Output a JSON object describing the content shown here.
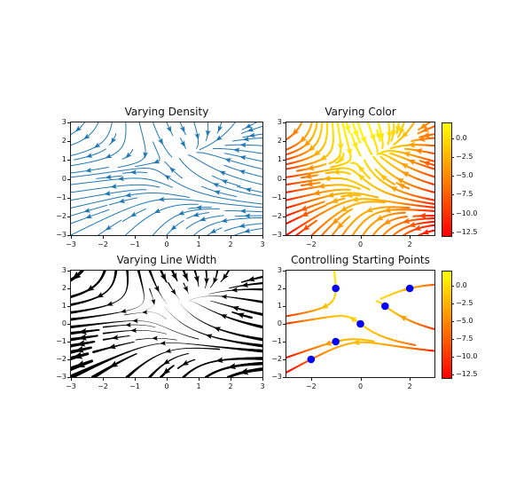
{
  "figure": {
    "background_color": "#ffffff"
  },
  "chart_data": {
    "type": "streamplot",
    "field": {
      "u_formula": "U = -1 - x^2 + y",
      "v_formula": "V = 1 + x - y^2",
      "x_range": [
        -3,
        3
      ],
      "y_range": [
        -3,
        3
      ]
    },
    "speed_max": 17.029386,
    "color_range": {
      "colormap": "autumn",
      "vmin": -13,
      "vmax": 2,
      "colormap_top": "#ffff00",
      "colormap_bottom": "#ff0000"
    },
    "colorbar": {
      "tick_values": [
        0,
        -2.5,
        -5,
        -7.5,
        -10,
        -12.5
      ],
      "tick_labels": [
        "0.0",
        "−2.5",
        "−5.0",
        "−7.5",
        "−10.0",
        "−12.5"
      ]
    },
    "panels": [
      {
        "title": "Varying Density",
        "density": [
          0.5,
          1
        ],
        "line_color": "#1f77b4",
        "linewidth": 1,
        "xtick_values": [
          -3,
          -2,
          -1,
          0,
          1,
          2,
          3
        ],
        "xtick_labels": [
          "−3",
          "−2",
          "−1",
          "0",
          "1",
          "2",
          "3"
        ],
        "ytick_values": [
          3,
          2,
          1,
          0,
          -1,
          -2,
          -3
        ],
        "ytick_labels": [
          "3",
          "2",
          "1",
          "0",
          "−1",
          "−2",
          "−3"
        ],
        "colorbar": false
      },
      {
        "title": "Varying Color",
        "density": [
          1,
          1
        ],
        "color_by": "u",
        "colormap": "autumn",
        "linewidth": 2,
        "xtick_values": [
          -2,
          0,
          2
        ],
        "xtick_labels": [
          "−2",
          "0",
          "2"
        ],
        "ytick_values": [
          3,
          2,
          1,
          0,
          -1,
          -2,
          -3
        ],
        "ytick_labels": [
          "3",
          "2",
          "1",
          "0",
          "−1",
          "−2",
          "−3"
        ],
        "colorbar": true
      },
      {
        "title": "Varying Line Width",
        "density": [
          0.6,
          0.6
        ],
        "line_color": "#000000",
        "linewidth_by": "speed",
        "max_linewidth": 5,
        "xtick_values": [
          -3,
          -2,
          -1,
          0,
          1,
          2,
          3
        ],
        "xtick_labels": [
          "−3",
          "−2",
          "−1",
          "0",
          "1",
          "2",
          "3"
        ],
        "ytick_values": [
          3,
          2,
          1,
          0,
          -1,
          -2,
          -3
        ],
        "ytick_labels": [
          "3",
          "2",
          "1",
          "0",
          "−1",
          "−2",
          "−3"
        ],
        "colorbar": false
      },
      {
        "title": "Controlling Starting Points",
        "color_by": "u",
        "colormap": "autumn",
        "linewidth": 2,
        "start_points": [
          [
            -2,
            -2
          ],
          [
            -1,
            -1
          ],
          [
            0,
            0
          ],
          [
            1,
            1
          ],
          [
            2,
            2
          ],
          [
            -1,
            2
          ]
        ],
        "marker": {
          "style": "circle",
          "color": "#0000ff",
          "radius_px": 4.3
        },
        "xtick_values": [
          -2,
          0,
          2
        ],
        "xtick_labels": [
          "−2",
          "0",
          "2"
        ],
        "ytick_values": [
          3,
          2,
          1,
          0,
          -1,
          -2,
          -3
        ],
        "ytick_labels": [
          "3",
          "2",
          "1",
          "0",
          "−1",
          "−2",
          "−3"
        ],
        "colorbar": true
      }
    ]
  }
}
